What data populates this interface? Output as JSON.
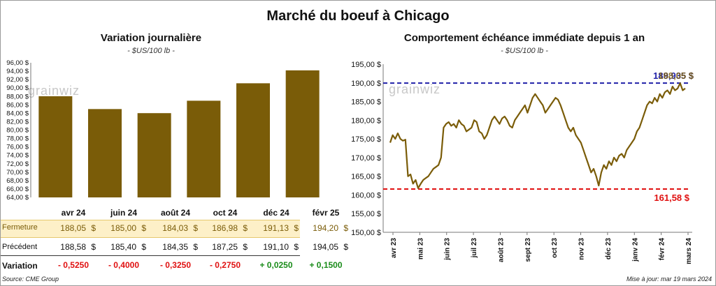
{
  "title": "Marché du boeuf à Chicago",
  "left": {
    "title": "Variation  journalière",
    "subtitle": "- $US/100 lb -"
  },
  "right": {
    "title": "Comportement  échéance immédiate  depuis 1 an",
    "subtitle": "- $US/100 lb -"
  },
  "table": {
    "row_labels": {
      "close": "Fermeture",
      "prev": "Précédent",
      "var": "Variation"
    },
    "currency": "$",
    "close": [
      "188,05",
      "185,00",
      "184,03",
      "186,98",
      "191,13",
      "194,20"
    ],
    "prev": [
      "188,58",
      "185,40",
      "184,35",
      "187,25",
      "191,10",
      "194,05"
    ],
    "variation": [
      "- 0,5250",
      "- 0,4000",
      "- 0,3250",
      "- 0,2750",
      "+ 0,0250",
      "+ 0,1500"
    ]
  },
  "watermark": "grainwiz",
  "footer": {
    "source": "Source: CME Group",
    "updated": "Mise à jour: mar 19 mars 2024"
  },
  "colors": {
    "bar": "#7a5c08",
    "line": "#7a5c08",
    "high": "#1f1fa8",
    "low": "#e01010",
    "highlight_row": "#fdf0c8",
    "positive": "#1a8c1a",
    "negative": "#e01010"
  },
  "chart_data": [
    {
      "type": "bar",
      "categories": [
        "avr 24",
        "juin 24",
        "août 24",
        "oct 24",
        "déc 24",
        "févr 25"
      ],
      "values": [
        88.05,
        85.0,
        84.03,
        86.98,
        91.13,
        94.2
      ],
      "ylim": [
        64,
        96
      ],
      "ytick_step": 2,
      "ytick_labels": [
        "64,00 $",
        "66,00 $",
        "68,00 $",
        "70,00 $",
        "72,00 $",
        "74,00 $",
        "76,00 $",
        "78,00 $",
        "80,00 $",
        "82,00 $",
        "84,00 $",
        "86,00 $",
        "88,00 $",
        "90,00 $",
        "92,00 $",
        "94,00 $",
        "96,00 $"
      ],
      "grid": false
    },
    {
      "type": "line",
      "x_labels": [
        "avr 23",
        "mai 23",
        "juin 23",
        "juil 23",
        "août 23",
        "sept 23",
        "oct 23",
        "nov 23",
        "déc 23",
        "janv 24",
        "févr 24",
        "mars 24"
      ],
      "values": [
        174,
        176,
        175,
        176.5,
        175,
        174.5,
        174.8,
        165,
        165.5,
        163,
        164,
        161.8,
        163,
        164,
        164.5,
        165,
        166,
        167,
        167.5,
        168,
        170,
        178,
        179,
        179.5,
        178.5,
        179,
        178,
        180,
        179,
        178.5,
        177,
        177.5,
        178,
        180,
        179.5,
        177,
        176.5,
        175,
        176,
        178,
        180,
        181,
        180,
        179,
        180.5,
        181,
        180,
        178.5,
        178,
        180,
        181,
        182,
        183,
        184,
        182,
        184,
        186,
        187,
        186,
        185,
        184,
        182,
        183,
        184,
        185,
        186,
        185.5,
        184,
        182,
        180,
        178,
        177,
        178,
        176,
        175,
        174,
        172,
        170,
        168,
        166,
        167,
        165,
        162.5,
        166,
        168,
        167,
        169,
        168,
        170,
        169,
        170.5,
        171,
        170,
        172,
        173,
        174,
        175,
        177,
        178,
        180,
        182,
        184,
        185,
        184.5,
        186,
        185,
        187,
        186,
        187.5,
        188,
        187,
        189,
        188,
        188.5,
        189.9,
        188,
        188.5
      ],
      "ylim": [
        150,
        195
      ],
      "ytick_labels": [
        "150,00 $",
        "155,00 $",
        "160,00 $",
        "165,00 $",
        "170,00 $",
        "175,00 $",
        "180,00 $",
        "185,00 $",
        "190,00 $",
        "195,00 $"
      ],
      "max_label": "189,935 $",
      "max_value": 189.935,
      "last_label": "188,05 $",
      "min_label": "161,58 $",
      "min_value": 161.58
    }
  ]
}
